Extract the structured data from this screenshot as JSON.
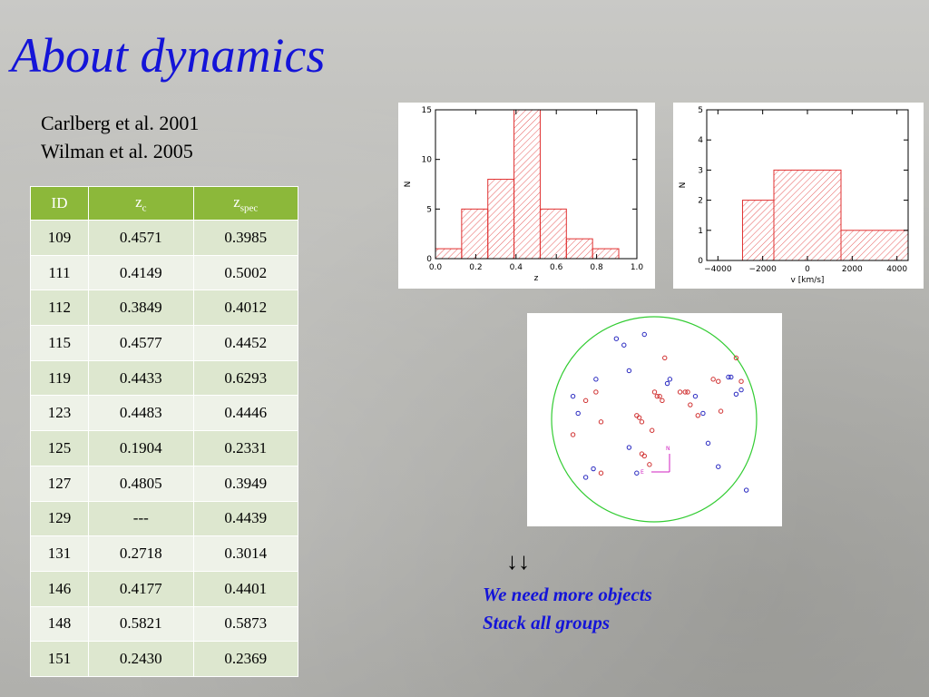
{
  "slide": {
    "title": "About dynamics",
    "references": [
      "Carlberg et al. 2001",
      "Wilman et al. 2005"
    ],
    "notes": {
      "arrows": "↓↓",
      "lines": [
        "We need more objects",
        "Stack all groups"
      ]
    }
  },
  "table": {
    "headers": {
      "id": "ID",
      "zc_base": "z",
      "zc_sub": "c",
      "zspec_base": "z",
      "zspec_sub": "spec"
    },
    "rows": [
      {
        "id": "109",
        "zc": "0.4571",
        "zspec": "0.3985"
      },
      {
        "id": "111",
        "zc": "0.4149",
        "zspec": "0.5002"
      },
      {
        "id": "112",
        "zc": "0.3849",
        "zspec": "0.4012"
      },
      {
        "id": "115",
        "zc": "0.4577",
        "zspec": "0.4452"
      },
      {
        "id": "119",
        "zc": "0.4433",
        "zspec": "0.6293"
      },
      {
        "id": "123",
        "zc": "0.4483",
        "zspec": "0.4446"
      },
      {
        "id": "125",
        "zc": "0.1904",
        "zspec": "0.2331"
      },
      {
        "id": "127",
        "zc": "0.4805",
        "zspec": "0.3949"
      },
      {
        "id": "129",
        "zc": "---",
        "zspec": "0.4439"
      },
      {
        "id": "131",
        "zc": "0.2718",
        "zspec": "0.3014"
      },
      {
        "id": "146",
        "zc": "0.4177",
        "zspec": "0.4401"
      },
      {
        "id": "148",
        "zc": "0.5821",
        "zspec": "0.5873"
      },
      {
        "id": "151",
        "zc": "0.2430",
        "zspec": "0.2369"
      }
    ]
  },
  "chart_data": [
    {
      "type": "bar",
      "subtype": "histogram",
      "xlabel": "z",
      "ylabel": "N",
      "xlim": [
        0,
        1.0
      ],
      "ylim": [
        0,
        15
      ],
      "xticks": [
        "0.0",
        "0.2",
        "0.4",
        "0.6",
        "0.8",
        "1.0"
      ],
      "yticks": [
        "0",
        "5",
        "10",
        "15"
      ],
      "bin_edges": [
        0.0,
        0.13,
        0.26,
        0.39,
        0.52,
        0.65,
        0.78,
        0.91
      ],
      "values": [
        1,
        5,
        8,
        15,
        5,
        2,
        1
      ],
      "color": "#e03030",
      "hatched": true
    },
    {
      "type": "bar",
      "subtype": "histogram",
      "xlabel": "v [km/s]",
      "ylabel": "N",
      "xlim": [
        -4500,
        4500
      ],
      "ylim": [
        0,
        5
      ],
      "xticks": [
        "−4000",
        "−2000",
        "0",
        "2000",
        "4000"
      ],
      "yticks": [
        "0",
        "1",
        "2",
        "3",
        "4",
        "5"
      ],
      "bin_edges": [
        -4500,
        -2900,
        -1500,
        1500,
        4500
      ],
      "values": [
        0,
        2,
        3,
        1
      ],
      "color": "#e03030",
      "hatched": true
    },
    {
      "type": "scatter",
      "subtype": "sky-map",
      "compass": {
        "north": "N",
        "east": "E"
      },
      "circle_color": "#33cc33",
      "series": [
        {
          "color": "#d03030",
          "points": [
            [
              0.18,
              0.57
            ],
            [
              0.23,
              0.41
            ],
            [
              0.27,
              0.37
            ],
            [
              0.29,
              0.51
            ],
            [
              0.29,
              0.75
            ],
            [
              0.43,
              0.48
            ],
            [
              0.44,
              0.49
            ],
            [
              0.45,
              0.51
            ],
            [
              0.45,
              0.66
            ],
            [
              0.46,
              0.67
            ],
            [
              0.48,
              0.71
            ],
            [
              0.49,
              0.55
            ],
            [
              0.5,
              0.37
            ],
            [
              0.51,
              0.39
            ],
            [
              0.52,
              0.39
            ],
            [
              0.53,
              0.41
            ],
            [
              0.54,
              0.21
            ],
            [
              0.6,
              0.37
            ],
            [
              0.62,
              0.37
            ],
            [
              0.63,
              0.37
            ],
            [
              0.64,
              0.43
            ],
            [
              0.67,
              0.48
            ],
            [
              0.73,
              0.31
            ],
            [
              0.75,
              0.32
            ],
            [
              0.76,
              0.46
            ],
            [
              0.82,
              0.21
            ],
            [
              0.84,
              0.32
            ]
          ]
        },
        {
          "color": "#2828c0",
          "points": [
            [
              0.18,
              0.39
            ],
            [
              0.2,
              0.47
            ],
            [
              0.23,
              0.77
            ],
            [
              0.26,
              0.73
            ],
            [
              0.27,
              0.31
            ],
            [
              0.35,
              0.12
            ],
            [
              0.38,
              0.15
            ],
            [
              0.4,
              0.27
            ],
            [
              0.4,
              0.63
            ],
            [
              0.43,
              0.75
            ],
            [
              0.46,
              0.1
            ],
            [
              0.55,
              0.33
            ],
            [
              0.56,
              0.31
            ],
            [
              0.66,
              0.39
            ],
            [
              0.69,
              0.47
            ],
            [
              0.71,
              0.61
            ],
            [
              0.75,
              0.72
            ],
            [
              0.79,
              0.3
            ],
            [
              0.8,
              0.3
            ],
            [
              0.82,
              0.38
            ],
            [
              0.84,
              0.36
            ],
            [
              0.86,
              0.83
            ]
          ]
        }
      ]
    }
  ]
}
